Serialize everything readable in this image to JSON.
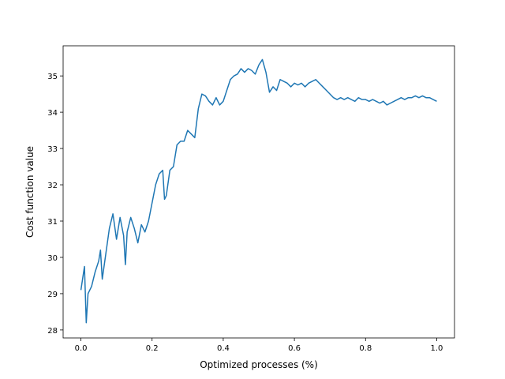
{
  "chart_data": {
    "type": "line",
    "x_label": "Optimized processes (%)",
    "y_label": "Cost function value",
    "x": [
      0,
      0.01,
      0.015,
      0.02,
      0.03,
      0.04,
      0.05,
      0.055,
      0.06,
      0.07,
      0.08,
      0.09,
      0.1,
      0.11,
      0.12,
      0.125,
      0.13,
      0.14,
      0.15,
      0.16,
      0.17,
      0.18,
      0.19,
      0.2,
      0.21,
      0.22,
      0.23,
      0.235,
      0.24,
      0.25,
      0.26,
      0.27,
      0.28,
      0.29,
      0.3,
      0.31,
      0.32,
      0.33,
      0.34,
      0.35,
      0.36,
      0.37,
      0.38,
      0.39,
      0.4,
      0.41,
      0.42,
      0.43,
      0.44,
      0.45,
      0.46,
      0.47,
      0.48,
      0.49,
      0.5,
      0.51,
      0.52,
      0.53,
      0.54,
      0.55,
      0.56,
      0.57,
      0.58,
      0.59,
      0.6,
      0.61,
      0.62,
      0.63,
      0.64,
      0.65,
      0.66,
      0.67,
      0.68,
      0.69,
      0.7,
      0.71,
      0.72,
      0.73,
      0.74,
      0.75,
      0.76,
      0.77,
      0.78,
      0.79,
      0.8,
      0.81,
      0.82,
      0.83,
      0.84,
      0.85,
      0.86,
      0.87,
      0.88,
      0.89,
      0.9,
      0.91,
      0.92,
      0.93,
      0.94,
      0.95,
      0.96,
      0.97,
      0.98,
      0.99,
      1.0
    ],
    "series": [
      {
        "color": "#1f77b4",
        "values": [
          29.1,
          29.75,
          28.2,
          29.0,
          29.2,
          29.6,
          29.9,
          30.2,
          29.4,
          30.1,
          30.8,
          31.2,
          30.5,
          31.1,
          30.6,
          29.8,
          30.7,
          31.1,
          30.8,
          30.4,
          30.9,
          30.7,
          31.0,
          31.5,
          32.0,
          32.3,
          32.4,
          31.6,
          31.7,
          32.4,
          32.5,
          33.1,
          33.2,
          33.2,
          33.5,
          33.4,
          33.3,
          34.1,
          34.5,
          34.45,
          34.3,
          34.2,
          34.4,
          34.2,
          34.3,
          34.6,
          34.9,
          35.0,
          35.05,
          35.2,
          35.1,
          35.2,
          35.15,
          35.05,
          35.3,
          35.45,
          35.1,
          34.55,
          34.7,
          34.6,
          34.9,
          34.85,
          34.8,
          34.7,
          34.8,
          34.75,
          34.8,
          34.7,
          34.8,
          34.85,
          34.9,
          34.8,
          34.7,
          34.6,
          34.5,
          34.4,
          34.35,
          34.4,
          34.35,
          34.4,
          34.35,
          34.3,
          34.4,
          34.35,
          34.35,
          34.3,
          34.35,
          34.3,
          34.25,
          34.3,
          34.2,
          34.25,
          34.3,
          34.35,
          34.4,
          34.35,
          34.4,
          34.4,
          34.45,
          34.4,
          34.45,
          34.4,
          34.4,
          34.35,
          34.3
        ]
      }
    ],
    "xlim": [
      -0.05,
      1.05
    ],
    "ylim": [
      27.78,
      35.83
    ],
    "xticks": [
      {
        "value": 0,
        "label": "0.0"
      },
      0.2,
      0.4,
      0.6,
      0.8,
      {
        "value": 1,
        "label": "1.0"
      }
    ],
    "yticks": [
      28,
      29,
      30,
      31,
      32,
      33,
      34,
      35
    ]
  }
}
